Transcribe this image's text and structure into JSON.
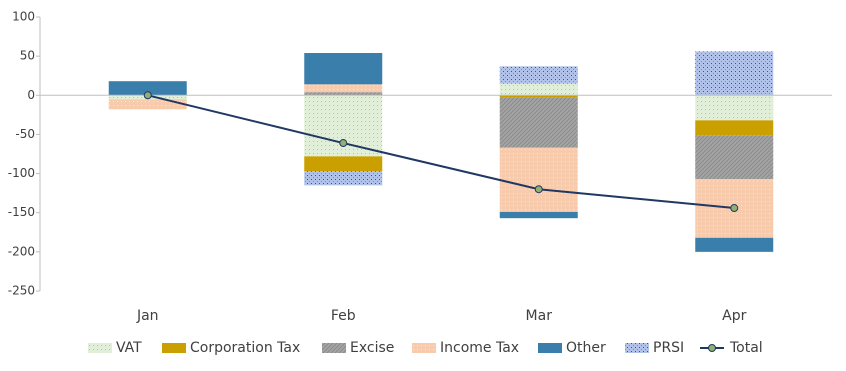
{
  "chart_data": {
    "type": "stacked-bar-line",
    "categories": [
      "Jan",
      "Feb",
      "Mar",
      "Apr"
    ],
    "series": [
      {
        "name": "VAT",
        "color": "#a9d08e",
        "values": [
          -5,
          -78,
          15,
          -32
        ]
      },
      {
        "name": "Corporation Tax",
        "color": "#c9a000",
        "values": [
          0,
          -19,
          -3,
          -19
        ]
      },
      {
        "name": "Excise",
        "color": "#a5a5a5",
        "values": [
          0,
          4,
          -64,
          -56
        ]
      },
      {
        "name": "Income Tax",
        "color": "#f8cbad",
        "values": [
          -13,
          10,
          -82,
          -75
        ]
      },
      {
        "name": "Other",
        "color": "#3a7eab",
        "values": [
          18,
          40,
          -8,
          -18
        ]
      },
      {
        "name": "PRSI",
        "color": "#6f8fd8",
        "values": [
          0,
          -18,
          22,
          56
        ]
      },
      {
        "name": "Total",
        "color": "#203864",
        "marker_color": "#8fb070",
        "type": "line",
        "values": [
          0,
          -61,
          -120,
          -144
        ]
      }
    ],
    "ylim": [
      -250,
      100
    ],
    "yticks": [
      -250,
      -200,
      -150,
      -100,
      -50,
      0,
      50,
      100
    ],
    "grid": false,
    "legend": "bottom"
  }
}
